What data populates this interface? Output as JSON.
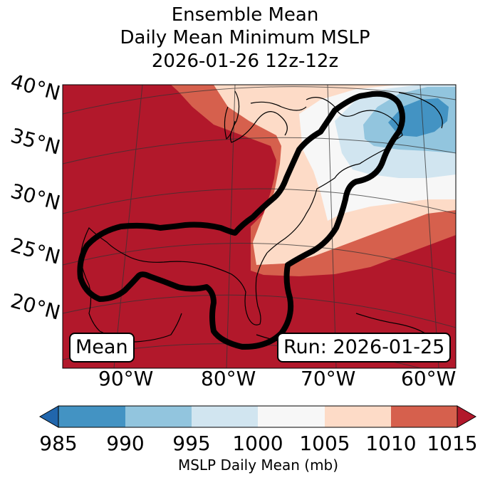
{
  "title": {
    "line1": "Ensemble Mean",
    "line2": "Daily Mean Minimum MSLP",
    "line3": "2026-01-26 12z-12z"
  },
  "map": {
    "lat_labels": [
      "40°N",
      "35°N",
      "30°N",
      "25°N",
      "20°N"
    ],
    "lon_labels": [
      "90°W",
      "80°W",
      "70°W",
      "60°W"
    ],
    "left_badge": "Mean",
    "right_badge": "Run: 2026-01-25",
    "colors": {
      "c985": "#2166ac",
      "c990": "#4393c3",
      "c995": "#92c5de",
      "c1000": "#d1e5f0",
      "c1005": "#f7f7f7",
      "c1010": "#fddbc7",
      "c1015": "#d6604d",
      "c1015plus": "#b2182b"
    }
  },
  "colorbar": {
    "ticks": [
      "985",
      "990",
      "995",
      "1000",
      "1005",
      "1010",
      "1015"
    ],
    "label": "MSLP Daily Mean (mb)"
  }
}
